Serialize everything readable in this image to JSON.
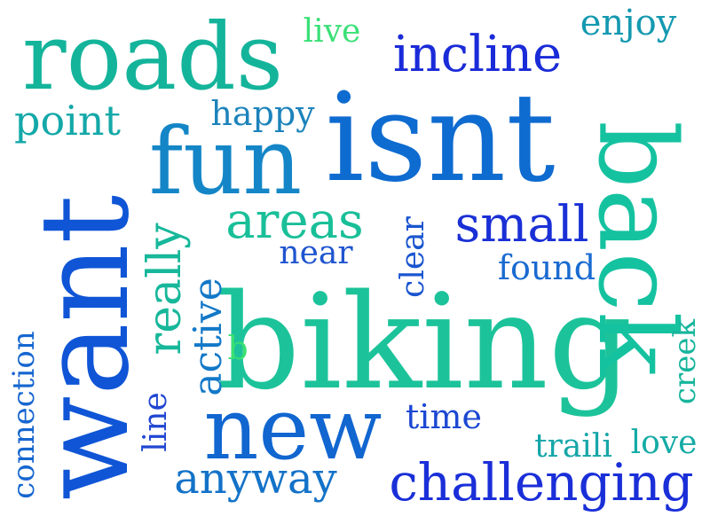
{
  "words": [
    {
      "key": "biking",
      "text": "biking",
      "color": "#1cc39a"
    },
    {
      "key": "want",
      "text": "want",
      "color": "#0f55d6"
    },
    {
      "key": "isnt",
      "text": "isnt",
      "color": "#0e6bd0"
    },
    {
      "key": "back",
      "text": "back",
      "color": "#15c2a0"
    },
    {
      "key": "roads",
      "text": "roads",
      "color": "#14b49b"
    },
    {
      "key": "fun",
      "text": "fun",
      "color": "#1486c7"
    },
    {
      "key": "new",
      "text": "new",
      "color": "#1166d0"
    },
    {
      "key": "challenging",
      "text": "challenging",
      "color": "#1a2fd8"
    },
    {
      "key": "incline",
      "text": "incline",
      "color": "#1a2bd8"
    },
    {
      "key": "small",
      "text": "small",
      "color": "#1a30d6"
    },
    {
      "key": "areas",
      "text": "areas",
      "color": "#19bf98"
    },
    {
      "key": "really",
      "text": "really",
      "color": "#17b79a"
    },
    {
      "key": "anyway",
      "text": "anyway",
      "color": "#1372c8"
    },
    {
      "key": "point",
      "text": "point",
      "color": "#14a8a8"
    },
    {
      "key": "active",
      "text": "active",
      "color": "#1379c8"
    },
    {
      "key": "enjoy",
      "text": "enjoy",
      "color": "#1499b0"
    },
    {
      "key": "happy",
      "text": "happy",
      "color": "#1c83bb"
    },
    {
      "key": "found",
      "text": "found",
      "color": "#1a6bd1"
    },
    {
      "key": "connection",
      "text": "connection",
      "color": "#1666cf"
    },
    {
      "key": "time",
      "text": "time",
      "color": "#1c48d2"
    },
    {
      "key": "love",
      "text": "love",
      "color": "#15aba6"
    },
    {
      "key": "traili",
      "text": "traili",
      "color": "#16a6a9"
    },
    {
      "key": "near",
      "text": "near",
      "color": "#1f55cf"
    },
    {
      "key": "clear",
      "text": "clear",
      "color": "#1a55d0"
    },
    {
      "key": "line",
      "text": "line",
      "color": "#2046d2"
    },
    {
      "key": "creek",
      "text": "creek",
      "color": "#16b59c"
    },
    {
      "key": "live",
      "text": "live",
      "color": "#3ae077"
    },
    {
      "key": "b",
      "text": "b",
      "color": "#3ae071"
    }
  ]
}
